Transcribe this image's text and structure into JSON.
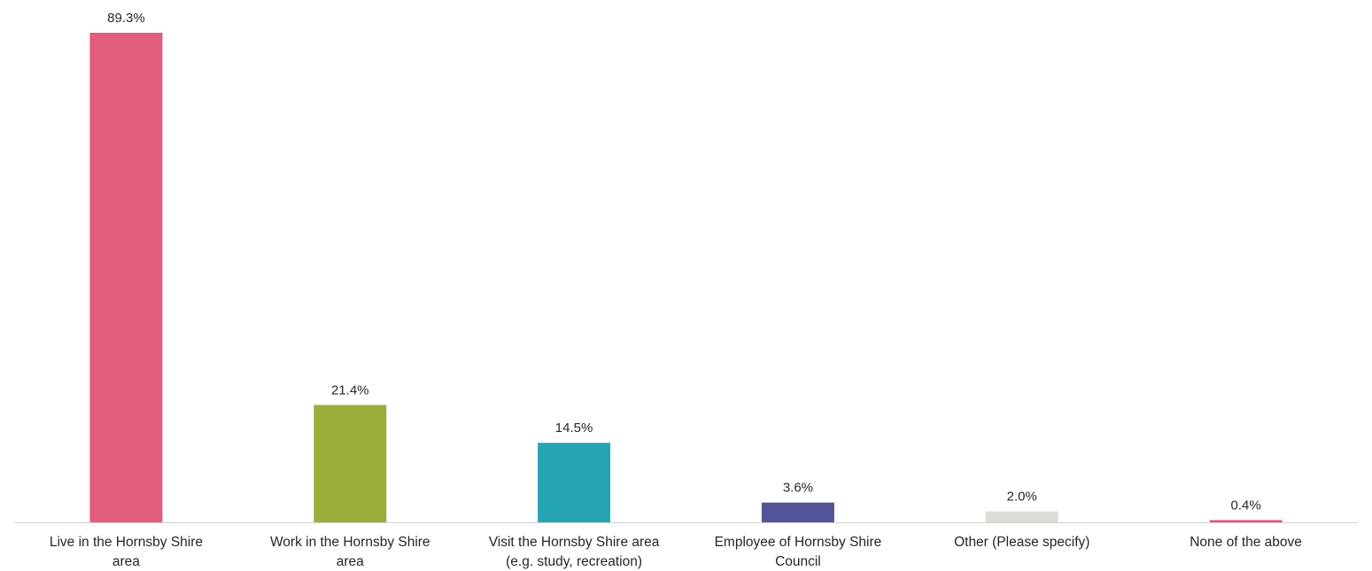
{
  "chart_data": {
    "type": "bar",
    "categories": [
      [
        "Live in the Hornsby Shire",
        "area"
      ],
      [
        "Work in the Hornsby Shire",
        "area"
      ],
      [
        "Visit the Hornsby Shire area",
        "(e.g. study, recreation)"
      ],
      [
        "Employee of Hornsby Shire",
        "Council"
      ],
      [
        "Other (Please specify)"
      ],
      [
        "None of the above"
      ]
    ],
    "values": [
      89.3,
      21.4,
      14.5,
      3.6,
      2.0,
      0.4
    ],
    "data_labels": [
      "89.3%",
      "21.4%",
      "14.5%",
      "3.6%",
      "2.0%",
      "0.4%"
    ],
    "colors": [
      "#e35d7c",
      "#9aae3c",
      "#26a6b5",
      "#535398",
      "#dcdcd7",
      "#e8507a"
    ],
    "ylim": [
      0,
      89.3
    ],
    "grid": false,
    "legend": "none"
  }
}
